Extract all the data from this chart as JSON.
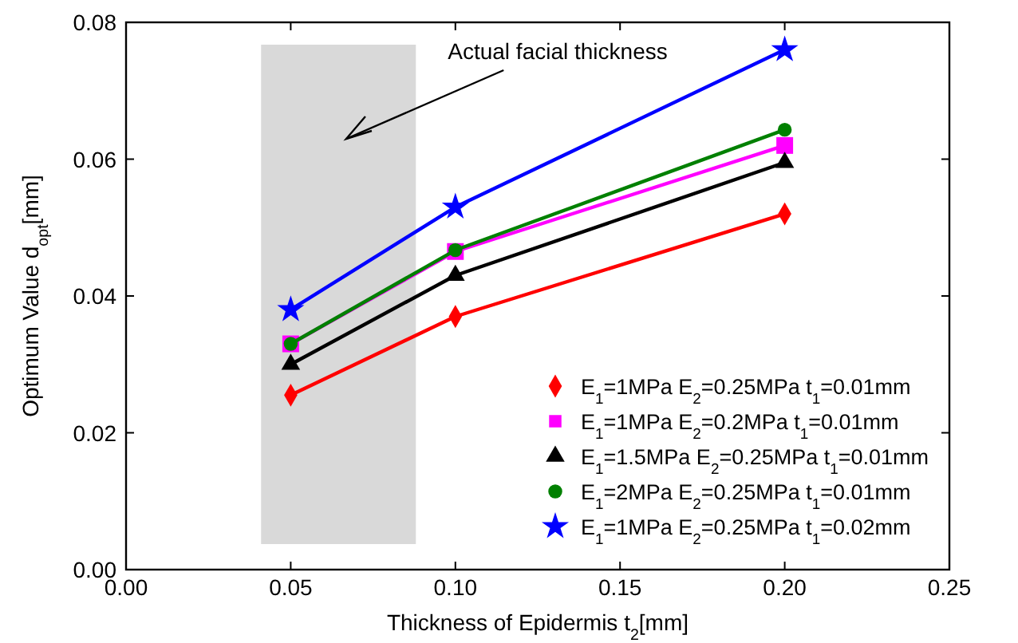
{
  "chart_data": {
    "type": "line",
    "xlabel": "Thickness of Epidermis t$_{2}$[mm]",
    "ylabel": "Optimum Value d$_{opt}$[mm]",
    "xlim": [
      0,
      0.25
    ],
    "ylim": [
      0,
      0.08
    ],
    "xticks": [
      {
        "value": 0,
        "label": "0.00"
      },
      {
        "value": 0.05,
        "label": "0.05"
      },
      {
        "value": 0.1,
        "label": "0.10"
      },
      {
        "value": 0.15,
        "label": "0.15"
      },
      {
        "value": 0.2,
        "label": "0.20"
      },
      {
        "value": 0.25,
        "label": "0.25"
      }
    ],
    "yticks": [
      {
        "value": 0,
        "label": "0.00"
      },
      {
        "value": 0.02,
        "label": "0.02"
      },
      {
        "value": 0.04,
        "label": "0.04"
      },
      {
        "value": 0.06,
        "label": "0.06"
      },
      {
        "value": 0.08,
        "label": "0.08"
      }
    ],
    "x": [
      0.05,
      0.1,
      0.2
    ],
    "grid": false,
    "legend": "bottom right",
    "line_style": "solid",
    "series": [
      {
        "name": "E$_{1}$=1MPa E$_{2}$=0.25MPa t$_{1}$=0.01mm",
        "color": "#ff0000",
        "marker": "diamond",
        "values": [
          0.0255,
          0.037,
          0.052
        ]
      },
      {
        "name": "E$_{1}$=1MPa E$_{2}$=0.2MPa t$_{1}$=0.01mm",
        "color": "#ff00ff",
        "marker": "square",
        "values": [
          0.033,
          0.0465,
          0.062
        ]
      },
      {
        "name": "E$_{1}$=1.5MPa E$_{2}$=0.25MPa t$_{1}$=0.01mm",
        "color": "#000000",
        "marker": "triangle",
        "values": [
          0.03,
          0.043,
          0.0595
        ]
      },
      {
        "name": "E$_{1}$=2MPa E$_{2}$=0.25MPa t$_{1}$=0.01mm",
        "color": "#008000",
        "marker": "circle",
        "values": [
          0.033,
          0.0467,
          0.0643
        ]
      },
      {
        "name": "E$_{1}$=1MPa E$_{2}$=0.25MPa t$_{1}$=0.02mm",
        "color": "#0000ff",
        "marker": "star",
        "values": [
          0.038,
          0.053,
          0.076
        ]
      }
    ],
    "bands": [
      {
        "axis": "x",
        "from": 0.041,
        "to": 0.088,
        "label": "Actual facial thickness",
        "color": "#d9d9d9"
      }
    ]
  }
}
